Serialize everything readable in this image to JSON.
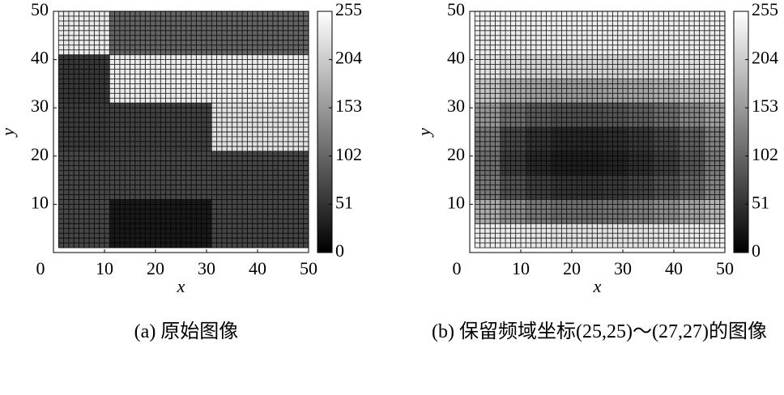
{
  "chart_data": [
    {
      "type": "heatmap",
      "caption": "(a) 原始图像",
      "xlabel": "x",
      "ylabel": "y",
      "xlim": [
        0,
        50
      ],
      "ylim": [
        0,
        50
      ],
      "xticks": [
        0,
        10,
        20,
        30,
        40,
        50
      ],
      "yticks": [
        10,
        20,
        30,
        40,
        50
      ],
      "x_edges": [
        1,
        11,
        31,
        50
      ],
      "y_edges": [
        1,
        11,
        21,
        31,
        41,
        50
      ],
      "z": [
        [
          70,
          25,
          70
        ],
        [
          70,
          70,
          70
        ],
        [
          60,
          65,
          225
        ],
        [
          55,
          235,
          235
        ],
        [
          235,
          100,
          100
        ]
      ],
      "clim": [
        0,
        255
      ],
      "colorbar_ticks": [
        0,
        51,
        102,
        153,
        204,
        255
      ],
      "colormap": "gray"
    },
    {
      "type": "heatmap",
      "caption": "(b) 保留频域坐标(25,25)～(27,27)的图像",
      "xlabel": "x",
      "ylabel": "y",
      "xlim": [
        0,
        50
      ],
      "ylim": [
        0,
        50
      ],
      "xticks": [
        0,
        10,
        20,
        30,
        40,
        50
      ],
      "yticks": [
        10,
        20,
        30,
        40,
        50
      ],
      "x_edges": [
        1,
        6,
        11,
        16,
        21,
        26,
        31,
        36,
        41,
        46,
        50
      ],
      "y_edges": [
        1,
        6,
        11,
        16,
        21,
        26,
        31,
        36,
        41,
        46,
        50
      ],
      "z": [
        [
          235,
          235,
          230,
          225,
          225,
          225,
          225,
          230,
          235,
          240
        ],
        [
          170,
          140,
          120,
          110,
          110,
          115,
          125,
          140,
          160,
          180
        ],
        [
          120,
          80,
          60,
          50,
          50,
          55,
          65,
          80,
          100,
          130
        ],
        [
          110,
          60,
          40,
          30,
          30,
          35,
          45,
          60,
          85,
          120
        ],
        [
          120,
          70,
          50,
          40,
          40,
          45,
          55,
          70,
          95,
          130
        ],
        [
          150,
          110,
          90,
          80,
          80,
          85,
          95,
          110,
          135,
          160
        ],
        [
          195,
          170,
          160,
          155,
          155,
          160,
          165,
          175,
          190,
          205
        ],
        [
          225,
          215,
          210,
          210,
          210,
          210,
          215,
          220,
          225,
          230
        ],
        [
          235,
          235,
          235,
          235,
          235,
          235,
          235,
          235,
          235,
          235
        ],
        [
          240,
          240,
          240,
          240,
          240,
          240,
          240,
          240,
          240,
          240
        ]
      ],
      "clim": [
        0,
        255
      ],
      "colorbar_ticks": [
        0,
        51,
        102,
        153,
        204,
        255
      ],
      "colormap": "gray"
    }
  ]
}
